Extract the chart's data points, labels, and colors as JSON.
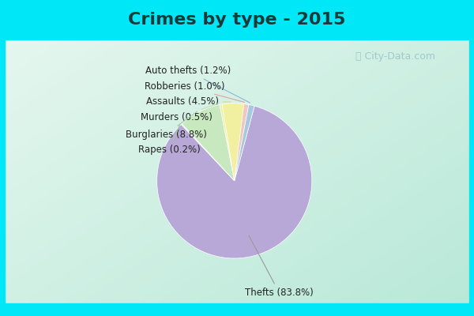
{
  "title": "Crimes by type - 2015",
  "title_fontsize": 16,
  "title_color": "#1a3a3a",
  "slices": [
    {
      "label": "Thefts (83.8%)",
      "value": 83.8,
      "color": "#b8a8d8"
    },
    {
      "label": "Rapes (0.2%)",
      "value": 0.2,
      "color": "#c8e8c0"
    },
    {
      "label": "Burglaries (8.8%)",
      "value": 8.8,
      "color": "#c8e8c0"
    },
    {
      "label": "Murders (0.5%)",
      "value": 0.5,
      "color": "#f0f0a0"
    },
    {
      "label": "Assaults (4.5%)",
      "value": 4.5,
      "color": "#f0f0a0"
    },
    {
      "label": "Robberies (1.0%)",
      "value": 1.0,
      "color": "#f0c8c0"
    },
    {
      "label": "Auto thefts (1.2%)",
      "value": 1.2,
      "color": "#a8c8e0"
    }
  ],
  "label_font_size": 8.5,
  "label_color": "#222222",
  "line_colors": [
    "#888888",
    "#888888",
    "#90c890",
    "#d0d088",
    "#e0b0a8",
    "#a0b8c8",
    "#a0b8c8"
  ],
  "cyan_color": "#00e8f8",
  "bg_color_topleft": "#b8e8d8",
  "bg_color_bottomright": "#e8f4ec",
  "fig_width": 6.0,
  "fig_height": 4.0
}
